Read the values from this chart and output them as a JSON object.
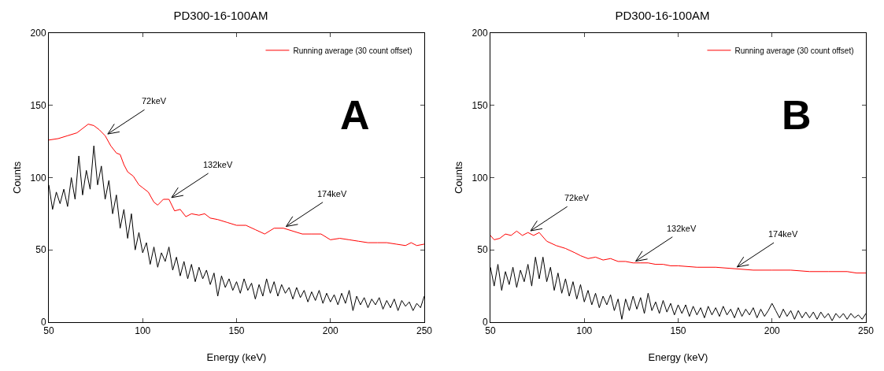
{
  "chart_data": [
    {
      "type": "line",
      "title": "PD300-16-100AM",
      "xlabel": "Energy (keV)",
      "ylabel": "Counts",
      "xlim": [
        50,
        250
      ],
      "xticks": [
        50,
        100,
        150,
        200,
        250
      ],
      "ylim": [
        0,
        200
      ],
      "yticks": [
        0,
        50,
        100,
        150,
        200
      ],
      "grid": false,
      "legend": "top right",
      "line_style": "solid",
      "marker": "none",
      "annotations": [
        {
          "text": "72keV",
          "x": 80,
          "y": 129
        },
        {
          "text": "132keV",
          "x": 114,
          "y": 85
        },
        {
          "text": "174keV",
          "x": 175,
          "y": 65
        },
        "A"
      ],
      "series": [
        {
          "color": "#000000",
          "x": [
            50,
            52,
            54,
            56,
            58,
            60,
            62,
            64,
            66,
            68,
            70,
            72,
            74,
            76,
            78,
            80,
            82,
            84,
            86,
            88,
            90,
            92,
            94,
            96,
            98,
            100,
            102,
            104,
            106,
            108,
            110,
            112,
            114,
            116,
            118,
            120,
            122,
            124,
            126,
            128,
            130,
            132,
            134,
            136,
            138,
            140,
            142,
            144,
            146,
            148,
            150,
            152,
            154,
            156,
            158,
            160,
            162,
            164,
            166,
            168,
            170,
            172,
            174,
            176,
            178,
            180,
            182,
            184,
            186,
            188,
            190,
            192,
            194,
            196,
            198,
            200,
            202,
            204,
            206,
            208,
            210,
            212,
            214,
            216,
            218,
            220,
            222,
            224,
            226,
            228,
            230,
            232,
            234,
            236,
            238,
            240,
            242,
            244,
            246,
            248,
            250
          ],
          "values": [
            95,
            78,
            90,
            82,
            92,
            80,
            100,
            85,
            115,
            88,
            105,
            92,
            122,
            95,
            108,
            85,
            98,
            75,
            88,
            65,
            78,
            58,
            75,
            50,
            62,
            48,
            55,
            40,
            52,
            38,
            48,
            42,
            52,
            36,
            45,
            32,
            42,
            30,
            40,
            28,
            38,
            30,
            36,
            26,
            34,
            18,
            32,
            24,
            30,
            22,
            28,
            20,
            30,
            22,
            27,
            16,
            26,
            18,
            30,
            20,
            28,
            18,
            26,
            20,
            24,
            16,
            24,
            17,
            22,
            14,
            21,
            15,
            22,
            13,
            20,
            14,
            19,
            12,
            20,
            13,
            22,
            8,
            18,
            12,
            17,
            10,
            16,
            12,
            17,
            9,
            15,
            10,
            16,
            8,
            15,
            11,
            14,
            8,
            13,
            10,
            18
          ]
        },
        {
          "name": "Running average (30 count offset)",
          "color": "#ff0000",
          "x": [
            50,
            55,
            60,
            65,
            68,
            71,
            74,
            77,
            80,
            83,
            86,
            88,
            90,
            92,
            95,
            98,
            100,
            103,
            106,
            108,
            111,
            114,
            117,
            120,
            123,
            126,
            130,
            133,
            136,
            140,
            145,
            150,
            155,
            160,
            165,
            170,
            175,
            180,
            185,
            190,
            195,
            200,
            205,
            210,
            215,
            220,
            225,
            230,
            235,
            240,
            243,
            246,
            250
          ],
          "values": [
            126,
            127,
            129,
            131,
            134,
            137,
            136,
            133,
            129,
            122,
            117,
            116,
            109,
            104,
            101,
            95,
            93,
            90,
            83,
            81,
            85,
            85,
            77,
            78,
            73,
            75,
            74,
            75,
            72,
            71,
            69,
            67,
            67,
            64,
            61,
            65,
            65,
            63,
            61,
            61,
            61,
            57,
            58,
            57,
            56,
            55,
            55,
            55,
            54,
            53,
            55,
            53,
            54
          ]
        }
      ]
    },
    {
      "type": "line",
      "title": "PD300-16-100AM",
      "xlabel": "Energy (keV)",
      "ylabel": "Counts",
      "xlim": [
        50,
        250
      ],
      "xticks": [
        50,
        100,
        150,
        200,
        250
      ],
      "ylim": [
        0,
        200
      ],
      "yticks": [
        0,
        50,
        100,
        150,
        200
      ],
      "grid": false,
      "legend": "top right",
      "line_style": "solid",
      "marker": "none",
      "annotations": [
        {
          "text": "72keV",
          "x": 70,
          "y": 62
        },
        {
          "text": "132keV",
          "x": 126,
          "y": 41
        },
        {
          "text": "174keV",
          "x": 180,
          "y": 37
        },
        "B"
      ],
      "series": [
        {
          "color": "#000000",
          "x": [
            50,
            52,
            54,
            56,
            58,
            60,
            62,
            64,
            66,
            68,
            70,
            72,
            74,
            76,
            78,
            80,
            82,
            84,
            86,
            88,
            90,
            92,
            94,
            96,
            98,
            100,
            102,
            104,
            106,
            108,
            110,
            112,
            114,
            116,
            118,
            120,
            122,
            124,
            126,
            128,
            130,
            132,
            134,
            136,
            138,
            140,
            142,
            144,
            146,
            148,
            150,
            152,
            154,
            156,
            158,
            160,
            162,
            164,
            166,
            168,
            170,
            172,
            174,
            176,
            178,
            180,
            182,
            184,
            186,
            188,
            190,
            192,
            194,
            196,
            198,
            200,
            202,
            204,
            206,
            208,
            210,
            212,
            214,
            216,
            218,
            220,
            222,
            224,
            226,
            228,
            230,
            232,
            234,
            236,
            238,
            240,
            242,
            244,
            246,
            248,
            250
          ],
          "values": [
            38,
            25,
            40,
            22,
            35,
            26,
            38,
            24,
            36,
            28,
            40,
            25,
            45,
            30,
            45,
            28,
            38,
            22,
            34,
            20,
            30,
            18,
            28,
            16,
            26,
            14,
            22,
            12,
            20,
            10,
            18,
            12,
            19,
            8,
            16,
            2,
            16,
            8,
            18,
            9,
            17,
            6,
            20,
            8,
            14,
            6,
            15,
            7,
            13,
            5,
            12,
            6,
            12,
            4,
            11,
            5,
            10,
            3,
            11,
            5,
            10,
            4,
            11,
            5,
            9,
            3,
            10,
            4,
            9,
            5,
            10,
            3,
            9,
            4,
            8,
            13,
            8,
            3,
            9,
            4,
            8,
            2,
            8,
            3,
            7,
            3,
            7,
            2,
            7,
            3,
            6,
            1,
            6,
            3,
            6,
            2,
            6,
            3,
            5,
            2,
            6
          ]
        },
        {
          "name": "Running average (30 count offset)",
          "color": "#ff0000",
          "x": [
            50,
            52,
            55,
            58,
            61,
            64,
            67,
            70,
            73,
            76,
            80,
            85,
            90,
            95,
            98,
            102,
            106,
            110,
            114,
            118,
            122,
            126,
            130,
            134,
            138,
            142,
            146,
            150,
            160,
            170,
            180,
            190,
            200,
            210,
            220,
            230,
            240,
            245,
            250
          ],
          "values": [
            60,
            57,
            58,
            61,
            60,
            63,
            60,
            62,
            60,
            62,
            56,
            53,
            51,
            48,
            46,
            44,
            45,
            43,
            44,
            42,
            42,
            41,
            41,
            41,
            40,
            40,
            39,
            39,
            38,
            38,
            37,
            36,
            36,
            36,
            35,
            35,
            35,
            34,
            34
          ]
        }
      ]
    }
  ]
}
